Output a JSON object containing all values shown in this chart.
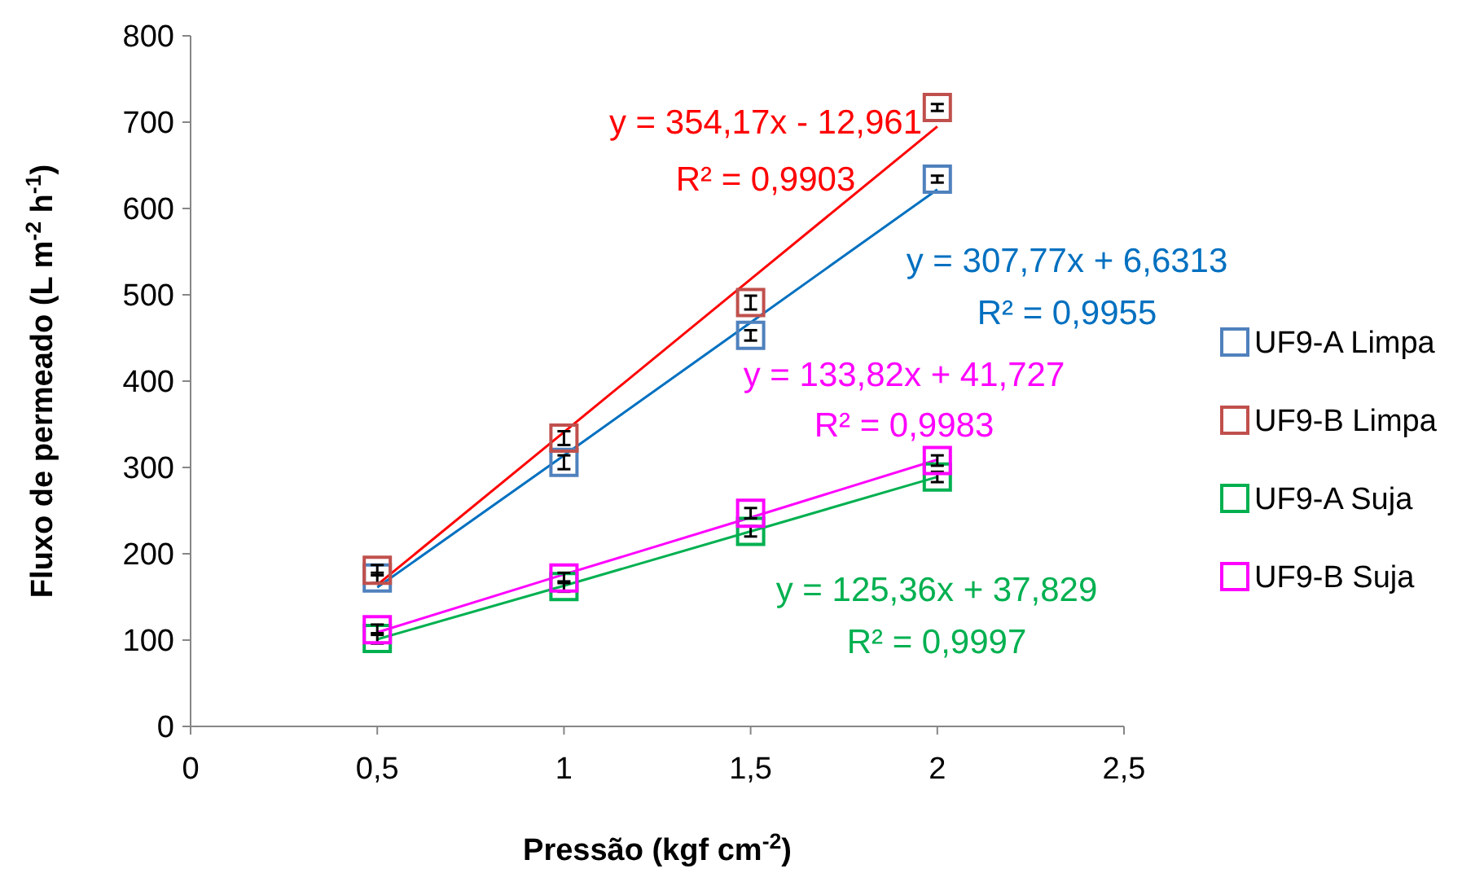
{
  "chart_data": {
    "type": "scatter",
    "xlabel": "Pressão (kgf cm$^{-2}$)",
    "ylabel": "Fluxo de permeado (L m$^{-2}$ h$^{-1}$)",
    "x": [
      0.5,
      1,
      1.5,
      2
    ],
    "series": [
      {
        "name": "UF9-A Limpa",
        "color": "#4f81bd",
        "values": [
          172,
          306,
          453,
          634
        ],
        "errors": [
          6,
          8,
          6,
          4
        ]
      },
      {
        "name": "UF9-B Limpa",
        "color": "#c0504d",
        "values": [
          181,
          334,
          491,
          717
        ],
        "errors": [
          6,
          8,
          8,
          4
        ]
      },
      {
        "name": "UF9-A Suja",
        "color": "#00b050",
        "values": [
          102,
          162,
          226,
          289
        ],
        "errors": [
          6,
          6,
          6,
          6
        ]
      },
      {
        "name": "UF9-B Suja",
        "color": "#ff00ff",
        "values": [
          112,
          172,
          247,
          308
        ],
        "errors": [
          6,
          6,
          6,
          6
        ]
      },
      {
        "type": "line",
        "marker": "none",
        "color": "#ff0000",
        "values": [
          164,
          341,
          518,
          695
        ]
      },
      {
        "type": "line",
        "marker": "none",
        "color": "#0070c0",
        "values": [
          161,
          314,
          468,
          622
        ]
      },
      {
        "type": "line",
        "marker": "none",
        "color": "#ff00ff",
        "values": [
          109,
          176,
          242,
          309
        ]
      },
      {
        "type": "line",
        "marker": "none",
        "color": "#00b050",
        "values": [
          101,
          163,
          226,
          289
        ]
      }
    ],
    "annotations": [
      "y = 354,17x - 12,961",
      "R² = 0,9903",
      "y = 307,77x + 6,6313",
      "R² = 0,9955",
      "y = 133,82x + 41,727",
      "R² = 0,9983",
      "y = 125,36x + 37,829",
      "R² = 0,9997"
    ],
    "xlim": [
      0,
      2.5
    ],
    "xticks": [
      {
        "value": 0,
        "label": "0"
      },
      {
        "value": 0.5,
        "label": "0,5"
      },
      {
        "value": 1,
        "label": "1"
      },
      {
        "value": 1.5,
        "label": "1,5"
      },
      {
        "value": 2,
        "label": "2"
      },
      {
        "value": 2.5,
        "label": "2,5"
      }
    ],
    "ylim": [
      0,
      800
    ],
    "yticks": [
      0,
      100,
      200,
      300,
      400,
      500,
      600,
      700,
      800
    ],
    "marker": "square",
    "legend": "right",
    "grid": false
  }
}
